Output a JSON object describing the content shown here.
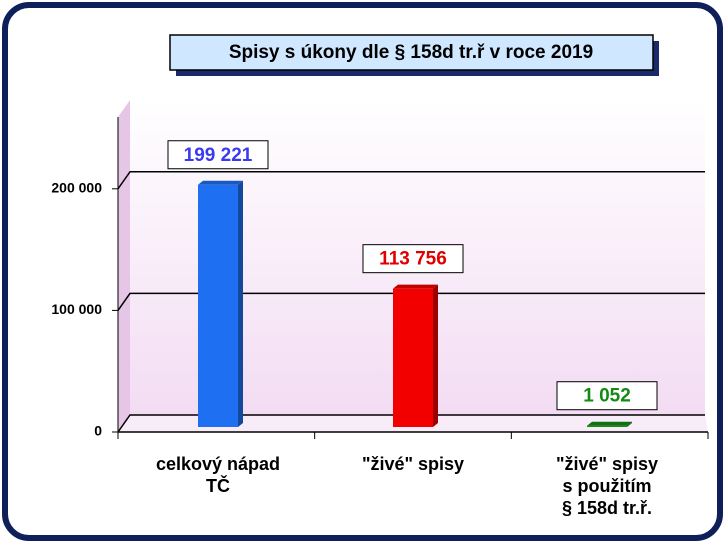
{
  "chart_data": {
    "type": "bar",
    "title": "Spisy s úkony dle § 158d tr.ř v roce 2019",
    "categories": [
      "celkový nápad\nTČ",
      "\"živé\" spisy",
      "\"živé\" spisy\ns použitím\n§ 158d tr.ř."
    ],
    "values": [
      199221,
      113756,
      1052
    ],
    "value_labels": [
      "199 221",
      "113 756",
      "1 052"
    ],
    "colors": [
      "#1f6ff2",
      "#f20000",
      "#168a16"
    ],
    "label_colors": [
      "#3a3af0",
      "#e00000",
      "#138a13"
    ],
    "ylim": [
      0,
      250000
    ],
    "yticks": [
      0,
      {
        "value": 100000,
        "label": "100 000"
      },
      {
        "value": 200000,
        "label": "200 000"
      }
    ],
    "grid": true
  }
}
